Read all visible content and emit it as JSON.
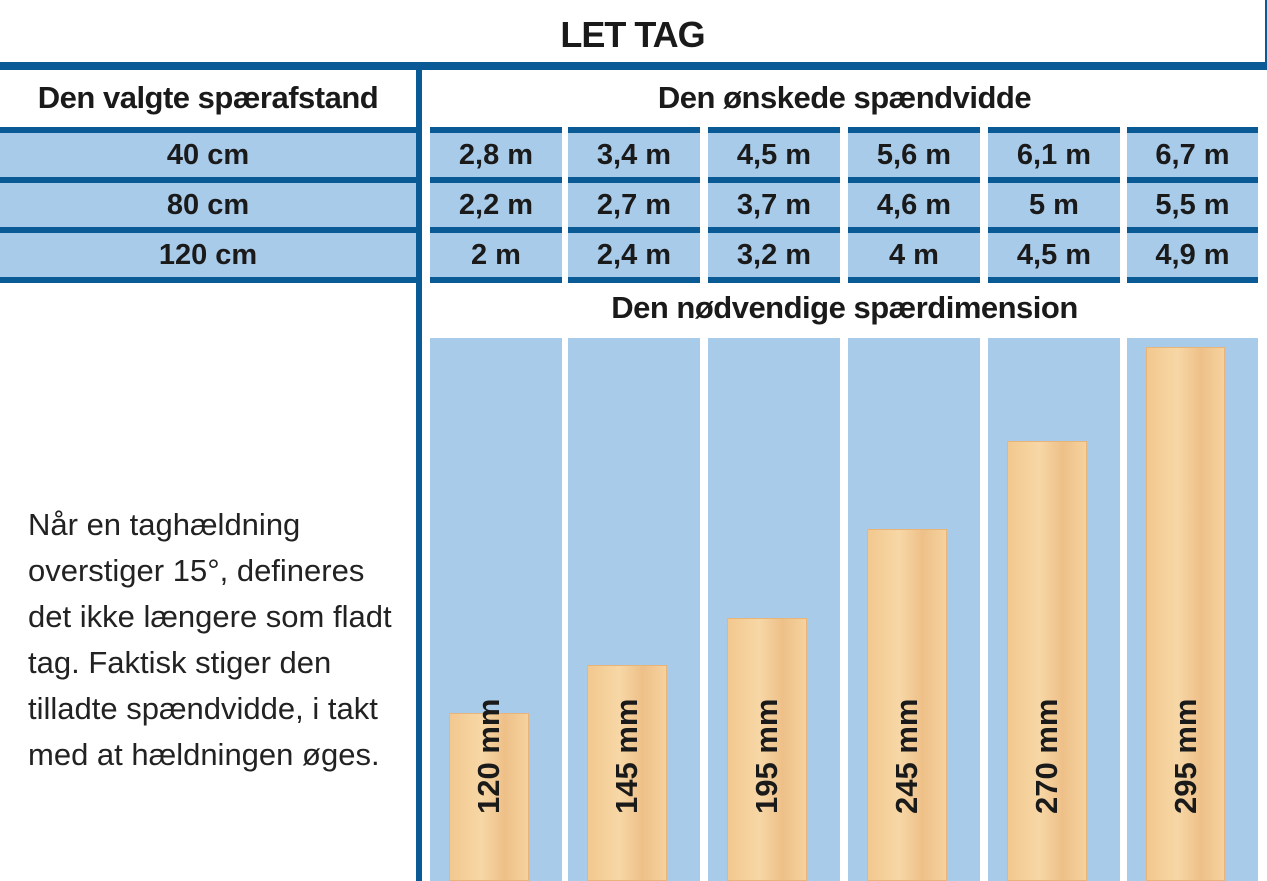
{
  "title": "LET TAG",
  "left_header": "Den valgte spærafstand",
  "right_header": "Den ønskede spændvidde",
  "rows": [
    {
      "spacing": "40 cm",
      "spans": [
        "2,8 m",
        "3,4 m",
        "4,5 m",
        "5,6 m",
        "6,1 m",
        "6,7 m"
      ]
    },
    {
      "spacing": "80 cm",
      "spans": [
        "2,2 m",
        "2,7 m",
        "3,7 m",
        "4,6 m",
        "5 m",
        "5,5 m"
      ]
    },
    {
      "spacing": "120 cm",
      "spans": [
        "2 m",
        "2,4 m",
        "3,2 m",
        "4 m",
        "4,5 m",
        "4,9 m"
      ]
    }
  ],
  "dimension_header": "Den nødvendige spærdimension",
  "dimensions": [
    "120 mm",
    "145 mm",
    "195 mm",
    "245 mm",
    "270 mm",
    "295 mm"
  ],
  "note": "Når en taghældning overstiger 15°, defineres det ikke længere som fladt tag. Faktisk stiger den tilladte spændvidde, i takt med at hældningen øges.",
  "colors": {
    "dark_blue": "#0a5a96",
    "light_blue": "#a9cbea",
    "wood": "#f2c88e"
  }
}
